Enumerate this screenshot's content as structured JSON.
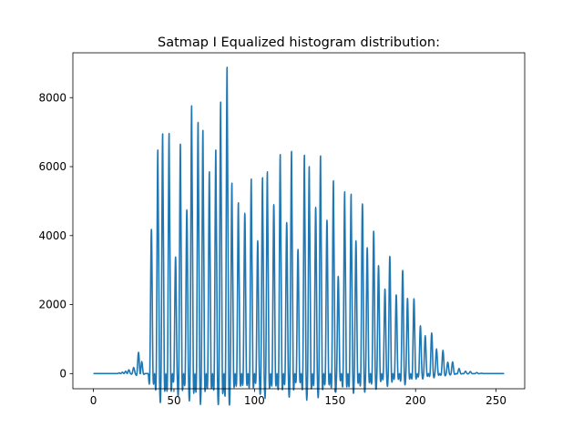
{
  "chart_data": {
    "type": "line",
    "title": "Satmap I Equalized histogram distribution:",
    "xlabel": "",
    "ylabel": "",
    "xlim": [
      -12.75,
      267.75
    ],
    "ylim": [
      -440,
      9300
    ],
    "xticks": [
      0,
      50,
      100,
      150,
      200,
      250
    ],
    "yticks": [
      0,
      2000,
      4000,
      6000,
      8000
    ],
    "grid": false,
    "legend": "none",
    "series": [
      {
        "color": "#1f77b4",
        "peaks": [
          [
            16,
            20
          ],
          [
            18,
            40
          ],
          [
            20,
            70
          ],
          [
            22,
            110
          ],
          [
            25,
            180
          ],
          [
            28,
            620
          ],
          [
            30,
            350
          ],
          [
            36,
            4180
          ],
          [
            40,
            6480
          ],
          [
            43,
            6950
          ],
          [
            47,
            6960
          ],
          [
            51,
            3380
          ],
          [
            54,
            6650
          ],
          [
            58,
            4750
          ],
          [
            61,
            7760
          ],
          [
            65,
            7280
          ],
          [
            68,
            7050
          ],
          [
            72,
            5850
          ],
          [
            76,
            6480
          ],
          [
            79,
            7870
          ],
          [
            83,
            8880
          ],
          [
            86,
            5520
          ],
          [
            90,
            4950
          ],
          [
            94,
            4650
          ],
          [
            98,
            5640
          ],
          [
            102,
            3850
          ],
          [
            105,
            5680
          ],
          [
            108,
            5850
          ],
          [
            112,
            4900
          ],
          [
            116,
            6350
          ],
          [
            120,
            4380
          ],
          [
            123,
            6440
          ],
          [
            127,
            3600
          ],
          [
            131,
            6330
          ],
          [
            134,
            6000
          ],
          [
            138,
            4820
          ],
          [
            141,
            6310
          ],
          [
            145,
            4450
          ],
          [
            149,
            5590
          ],
          [
            152,
            2820
          ],
          [
            156,
            5270
          ],
          [
            160,
            5200
          ],
          [
            163,
            3850
          ],
          [
            167,
            4920
          ],
          [
            170,
            3650
          ],
          [
            174,
            4130
          ],
          [
            177,
            3130
          ],
          [
            181,
            2450
          ],
          [
            184,
            3400
          ],
          [
            188,
            2280
          ],
          [
            192,
            2990
          ],
          [
            195,
            2180
          ],
          [
            199,
            2170
          ],
          [
            203,
            1390
          ],
          [
            206,
            1100
          ],
          [
            210,
            1180
          ],
          [
            213,
            720
          ],
          [
            217,
            680
          ],
          [
            220,
            330
          ],
          [
            223,
            340
          ],
          [
            227,
            150
          ],
          [
            231,
            70
          ],
          [
            234,
            60
          ],
          [
            238,
            30
          ],
          [
            241,
            10
          ]
        ]
      }
    ]
  }
}
